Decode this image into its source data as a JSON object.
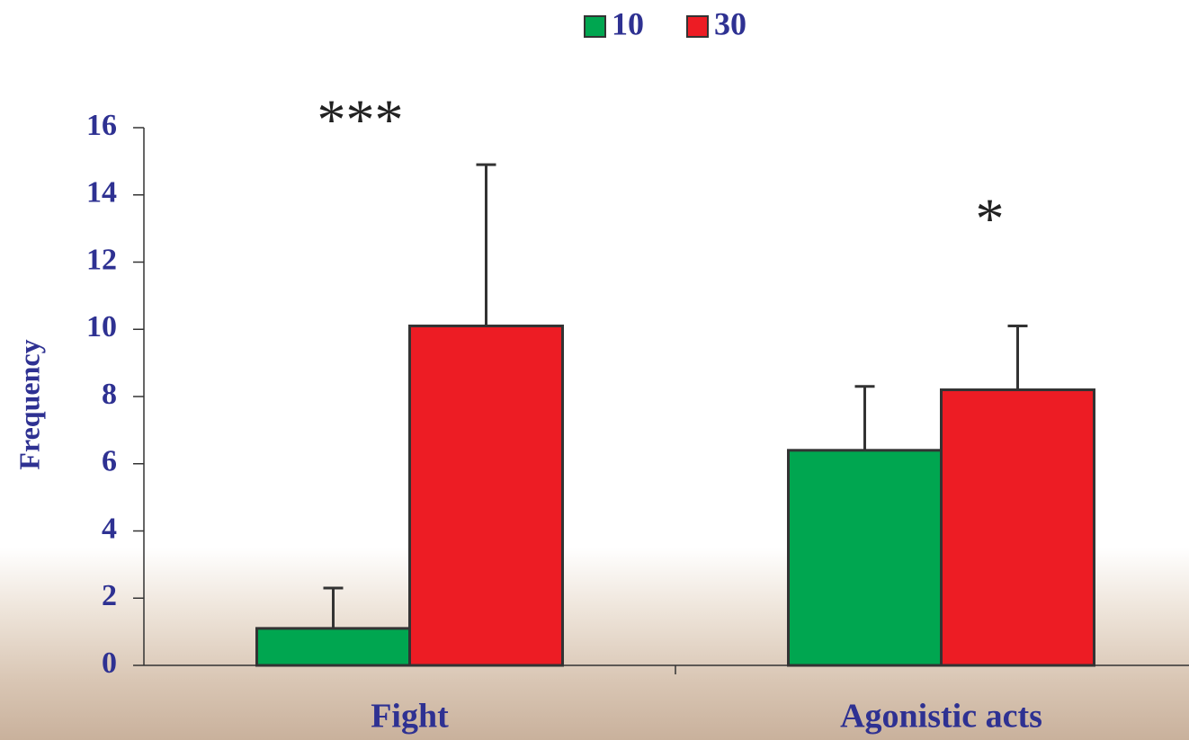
{
  "chart_data": {
    "type": "bar",
    "y_label": "Frequency",
    "categories": [
      "Fight",
      "Agonistic acts"
    ],
    "series": [
      {
        "name": "10",
        "color": "#00a650",
        "values": [
          1.1,
          6.4
        ],
        "errors": [
          1.2,
          1.9
        ]
      },
      {
        "name": "30",
        "color": "#ed1c24",
        "values": [
          10.1,
          8.2
        ],
        "errors": [
          4.8,
          1.9
        ]
      }
    ],
    "significance": [
      "***",
      "*"
    ],
    "ylim": [
      0,
      16
    ],
    "yticks": [
      0,
      2,
      4,
      6,
      8,
      10,
      12,
      14,
      16
    ],
    "legend": "top"
  }
}
